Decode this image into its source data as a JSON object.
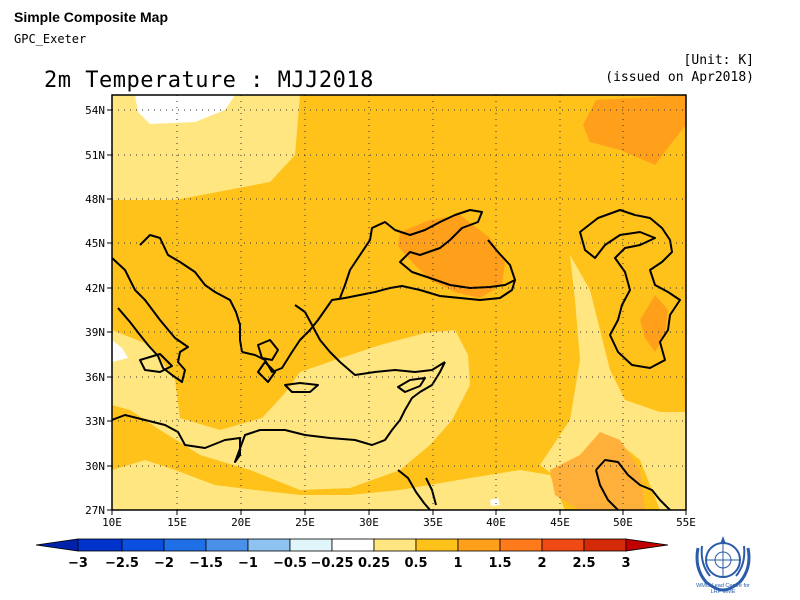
{
  "header": {
    "title": "Simple Composite Map",
    "subtitle": "GPC_Exeter",
    "unit": "[Unit: K]",
    "issued": "(issued on Apr2018)"
  },
  "map": {
    "title": "2m Temperature : MJJ2018",
    "lon_range": [
      10,
      55
    ],
    "lat_range": [
      27,
      55
    ],
    "lon_ticks": [
      "10E",
      "15E",
      "20E",
      "25E",
      "30E",
      "35E",
      "40E",
      "45E",
      "50E",
      "55E"
    ],
    "lat_ticks": [
      "54N",
      "51N",
      "48N",
      "45N",
      "42N",
      "39N",
      "36N",
      "33N",
      "30N",
      "27N"
    ],
    "grid": "dotted"
  },
  "colorbar": {
    "labels": [
      "−3",
      "−2.5",
      "−2",
      "−1.5",
      "−1",
      "−0.5",
      "−0.25",
      "0.25",
      "0.5",
      "1",
      "1.5",
      "2",
      "2.5",
      "3"
    ],
    "colors": [
      "#0033cc",
      "#0a4fe0",
      "#1f6fe6",
      "#4a90e8",
      "#8ec2f0",
      "#e0f6fb",
      "#ffffff",
      "#ffe680",
      "#ffc21a",
      "#ff9f1a",
      "#ff7a1a",
      "#f04a14",
      "#d42a0a"
    ],
    "min_color": "#0022aa",
    "max_color": "#c00000"
  },
  "logo": {
    "icon": "wmo-emblem-icon",
    "text_line1": "WMO Lead Centre for",
    "text_line2": "LRF MME"
  }
}
